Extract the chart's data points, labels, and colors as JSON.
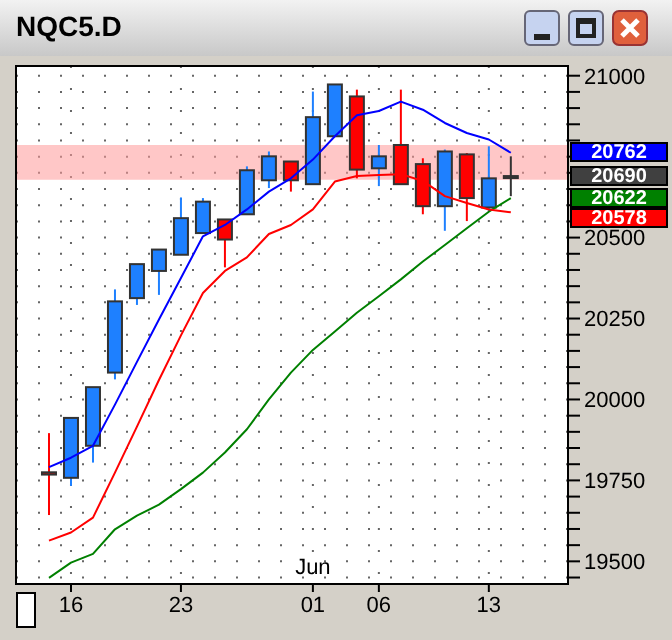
{
  "chart_data": {
    "type": "candlestick",
    "title": "NQC5.D",
    "categories": [
      null,
      "16",
      null,
      null,
      null,
      null,
      "23",
      null,
      null,
      null,
      null,
      null,
      "Jun 01",
      null,
      null,
      "06",
      null,
      null,
      null,
      null,
      "13",
      null
    ],
    "series": [
      {
        "color": "#404040",
        "colors": [
          "#ff0000",
          "#1e80ff",
          "#1e80ff",
          "#1e80ff",
          "#1e80ff",
          "#1e80ff",
          "#1e80ff",
          "#1e80ff",
          "#ff0000",
          "#1e80ff",
          "#1e80ff",
          "#ff0000",
          "#1e80ff",
          "#1e80ff",
          "#ff0000",
          "#1e80ff",
          "#ff0000",
          "#ff0000",
          "#1e80ff",
          "#ff0000",
          "#1e80ff",
          "#333333"
        ],
        "ohlc": [
          [
            19775,
            19896,
            19643,
            19768
          ],
          [
            19758,
            19943,
            19733,
            19943
          ],
          [
            19857,
            20038,
            19805,
            20038
          ],
          [
            20083,
            20340,
            20062,
            20303
          ],
          [
            20313,
            20418,
            20292,
            20418
          ],
          [
            20397,
            20463,
            20323,
            20463
          ],
          [
            20447,
            20624,
            20447,
            20560
          ],
          [
            20514,
            20622,
            20514,
            20611
          ],
          [
            20556,
            20556,
            20408,
            20494
          ],
          [
            20572,
            20720,
            20572,
            20708
          ],
          [
            20677,
            20766,
            20653,
            20751
          ],
          [
            20735,
            20735,
            20642,
            20677
          ],
          [
            20665,
            20951,
            20665,
            20872
          ],
          [
            20813,
            20973,
            20813,
            20973
          ],
          [
            20936,
            20957,
            20683,
            20710
          ],
          [
            20714,
            20786,
            20659,
            20751
          ],
          [
            20786,
            20957,
            20665,
            20665
          ],
          [
            20727,
            20745,
            20572,
            20597
          ],
          [
            20597,
            20772,
            20521,
            20766
          ],
          [
            20757,
            20761,
            20551,
            20622
          ],
          [
            20593,
            20782,
            20580,
            20683
          ],
          [
            20686,
            20751,
            20628,
            20690
          ]
        ],
        "value_labels": [
          null,
          null,
          null,
          null,
          null,
          null,
          null,
          null,
          null,
          null,
          null,
          null,
          null,
          null,
          null,
          null,
          null,
          null,
          null,
          null,
          null,
          "20690"
        ]
      },
      {
        "type": "line",
        "color": "#0000ff",
        "values": [
          19791,
          19820,
          19857,
          19984,
          20116,
          20247,
          20375,
          20504,
          20539,
          20587,
          20642,
          20683,
          20741,
          20813,
          20878,
          20891,
          20920,
          20895,
          20854,
          20823,
          20803,
          20762
        ]
      },
      {
        "type": "line",
        "color": "#008000",
        "values": [
          19449,
          19496,
          19523,
          19599,
          19641,
          19675,
          19723,
          19774,
          19836,
          19908,
          20000,
          20083,
          20153,
          20210,
          20268,
          20319,
          20371,
          20426,
          20477,
          20529,
          20580,
          20622
        ]
      },
      {
        "type": "line",
        "color": "#ff0000",
        "values": [
          19564,
          19589,
          19635,
          19774,
          19916,
          20060,
          20198,
          20329,
          20397,
          20439,
          20511,
          20539,
          20587,
          20673,
          20690,
          20693,
          20696,
          20675,
          20628,
          20607,
          20587,
          20578
        ]
      }
    ],
    "ylim": [
      19430,
      21030
    ],
    "yticks": [
      {
        "value": 19450,
        "label": null
      },
      19500,
      {
        "value": 19550,
        "label": null
      },
      {
        "value": 19600,
        "label": null
      },
      {
        "value": 19650,
        "label": null
      },
      {
        "value": 19700,
        "label": null
      },
      19750,
      {
        "value": 19800,
        "label": null
      },
      {
        "value": 19850,
        "label": null
      },
      {
        "value": 19900,
        "label": null
      },
      {
        "value": 19950,
        "label": null
      },
      20000,
      {
        "value": 20050,
        "label": null
      },
      {
        "value": 20100,
        "label": null
      },
      {
        "value": 20150,
        "label": null
      },
      {
        "value": 20200,
        "label": null
      },
      20250,
      {
        "value": 20300,
        "label": null
      },
      {
        "value": 20350,
        "label": null
      },
      {
        "value": 20400,
        "label": null
      },
      {
        "value": 20450,
        "label": null
      },
      20500,
      {
        "value": 20550,
        "label": null
      },
      {
        "value": 20600,
        "label": null
      },
      {
        "value": 20650,
        "label": null
      },
      {
        "value": 20700,
        "label": null
      },
      {
        "value": 20750,
        "label": null
      },
      {
        "value": 20800,
        "label": null
      },
      {
        "value": 20850,
        "label": null
      },
      {
        "value": 20900,
        "label": null
      },
      {
        "value": 20950,
        "label": null
      },
      21000
    ],
    "bands": [
      {
        "axis": "y",
        "from": 20679,
        "to": 20786,
        "color": "#ff9999"
      }
    ],
    "annotations": [
      "20762",
      "20622",
      "20578"
    ],
    "grid": true
  }
}
